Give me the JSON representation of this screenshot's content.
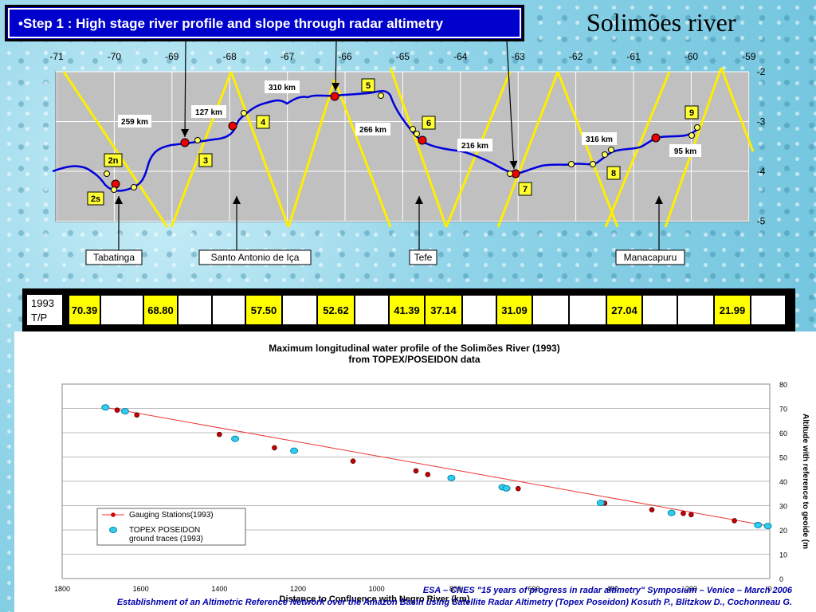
{
  "slide": {
    "step_title": "•Step 1 : High stage river profile and slope through radar altimetry",
    "river_title": "Solimões river"
  },
  "map": {
    "lon_ticks": [
      "-71",
      "-70",
      "-69",
      "-68",
      "-67",
      "-66",
      "-65",
      "-64",
      "-63",
      "-62",
      "-61",
      "-60",
      "-59"
    ],
    "lat_ticks": [
      "-2",
      "-3",
      "-4",
      "-5"
    ],
    "distance_labels": [
      "259 km",
      "127 km",
      "310 km",
      "266 km",
      "216 km",
      "316 km",
      "95 km"
    ],
    "track_labels": [
      "2n",
      "2s",
      "3",
      "4",
      "5",
      "6",
      "7",
      "8",
      "9"
    ],
    "cities": [
      "Tabatinga",
      "Santo Antonio de Iça",
      "Tefe",
      "Manacapuru"
    ]
  },
  "tp_table": {
    "label_line1": "1993",
    "label_line2": "T/P",
    "values": [
      "70.39",
      "",
      "68.80",
      "",
      "",
      "57.50",
      "",
      "52.62",
      "",
      "41.39",
      "37.14",
      "",
      "31.09",
      "",
      "",
      "27.04",
      "",
      "",
      "21.99",
      ""
    ]
  },
  "chart_data": {
    "type": "scatter",
    "title": "Maximum longitudinal water profile of the Solimões River (1993)",
    "subtitle": "from TOPEX/POSEIDON data",
    "xlabel": "Distance to Confluence with Negro River (km)",
    "ylabel": "Altitude with reference to geoide (m",
    "xlim": [
      1800,
      0
    ],
    "ylim": [
      0,
      80
    ],
    "x_ticks": [
      1800,
      1600,
      1400,
      1200,
      1000,
      800,
      600,
      400,
      200,
      0
    ],
    "y_ticks": [
      0,
      10,
      20,
      30,
      40,
      50,
      60,
      70,
      80
    ],
    "grid": true,
    "legend_position": "bottom-left",
    "series": [
      {
        "name": "Gauging Stations(1993)",
        "color": "#cc0000",
        "points": [
          [
            1660,
            69.3
          ],
          [
            1610,
            67.3
          ],
          [
            1400,
            59.3
          ],
          [
            1260,
            53.8
          ],
          [
            1060,
            48.3
          ],
          [
            900,
            44.3
          ],
          [
            870,
            42.8
          ],
          [
            640,
            37.0
          ],
          [
            420,
            31.0
          ],
          [
            300,
            28.3
          ],
          [
            220,
            26.8
          ],
          [
            200,
            26.3
          ],
          [
            90,
            23.8
          ]
        ]
      },
      {
        "name": "TOPEX POSEIDON\nground traces (1993)",
        "color": "#33ccee",
        "points": [
          [
            1690,
            70.4
          ],
          [
            1640,
            68.8
          ],
          [
            1360,
            57.5
          ],
          [
            1210,
            52.6
          ],
          [
            810,
            41.4
          ],
          [
            680,
            37.6
          ],
          [
            670,
            37.1
          ],
          [
            430,
            31.1
          ],
          [
            250,
            27.0
          ],
          [
            30,
            22.0
          ],
          [
            5,
            21.6
          ]
        ]
      }
    ],
    "trend_line": [
      [
        1690,
        70.4
      ],
      [
        0,
        21.5
      ]
    ]
  },
  "footer": {
    "line1": "ESA – CNES \"15 years of progress in radar altimetry\" Symposium – Venice – March 2006",
    "line2": "Establishment of an Altimetric Reference Network over the Amazon Basin using Satellite Radar Altimetry (Topex Poseidon)    Kosuth P., Blitzkow D., Cochonneau G."
  }
}
